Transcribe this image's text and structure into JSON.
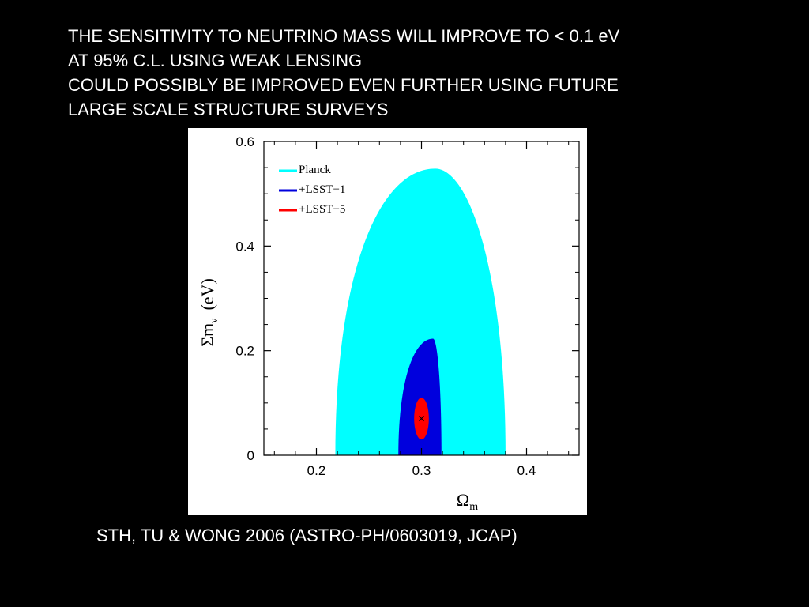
{
  "headline": {
    "lines": [
      "THE SENSITIVITY TO NEUTRINO MASS WILL IMPROVE TO < 0.1 eV",
      "AT 95% C.L. USING WEAK LENSING",
      "COULD POSSIBLY BE IMPROVED EVEN FURTHER USING FUTURE",
      "LARGE SCALE STRUCTURE SURVEYS"
    ]
  },
  "citation": "STH, TU & WONG 2006 (ASTRO-PH/0603019, JCAP)",
  "colors": {
    "background": "#000000",
    "text": "#ffffff",
    "planck": "#00ffff",
    "lsst1": "#0000dd",
    "lsst5": "#ff0000"
  },
  "chart_data": {
    "type": "contour",
    "title": "",
    "xlabel": "Ω",
    "xlabel_sub": "m",
    "ylabel": "Σm",
    "ylabel_sub": "ν",
    "ylabel_unit": "(eV)",
    "xlim": [
      0.15,
      0.45
    ],
    "ylim": [
      0,
      0.6
    ],
    "x_ticks": [
      {
        "value": 0.2,
        "label": "0.2"
      },
      {
        "value": 0.3,
        "label": "0.3"
      },
      {
        "value": 0.4,
        "label": "0.4"
      }
    ],
    "y_ticks": [
      {
        "value": 0,
        "label": "0"
      },
      {
        "value": 0.2,
        "label": "0.2"
      },
      {
        "value": 0.4,
        "label": "0.4"
      },
      {
        "value": 0.6,
        "label": "0.6"
      }
    ],
    "legend_position": "top-left",
    "fiducial": {
      "x": 0.3,
      "y": 0.07,
      "marker": "×"
    },
    "series": [
      {
        "name": "Planck",
        "color": "#00ffff",
        "region": {
          "x_min": 0.218,
          "x_max": 0.38,
          "x_at_peak": 0.313,
          "y_max": 0.548,
          "y_min": 0
        }
      },
      {
        "name": "+LSST−1",
        "color": "#0000dd",
        "region": {
          "x_min": 0.278,
          "x_max": 0.319,
          "x_at_peak": 0.311,
          "y_max": 0.223,
          "y_min": 0
        }
      },
      {
        "name": "+LSST−5",
        "color": "#ff0000",
        "region": {
          "x_center": 0.3,
          "y_center": 0.07,
          "x_halfwidth": 0.007,
          "y_halfwidth": 0.04
        }
      }
    ]
  }
}
